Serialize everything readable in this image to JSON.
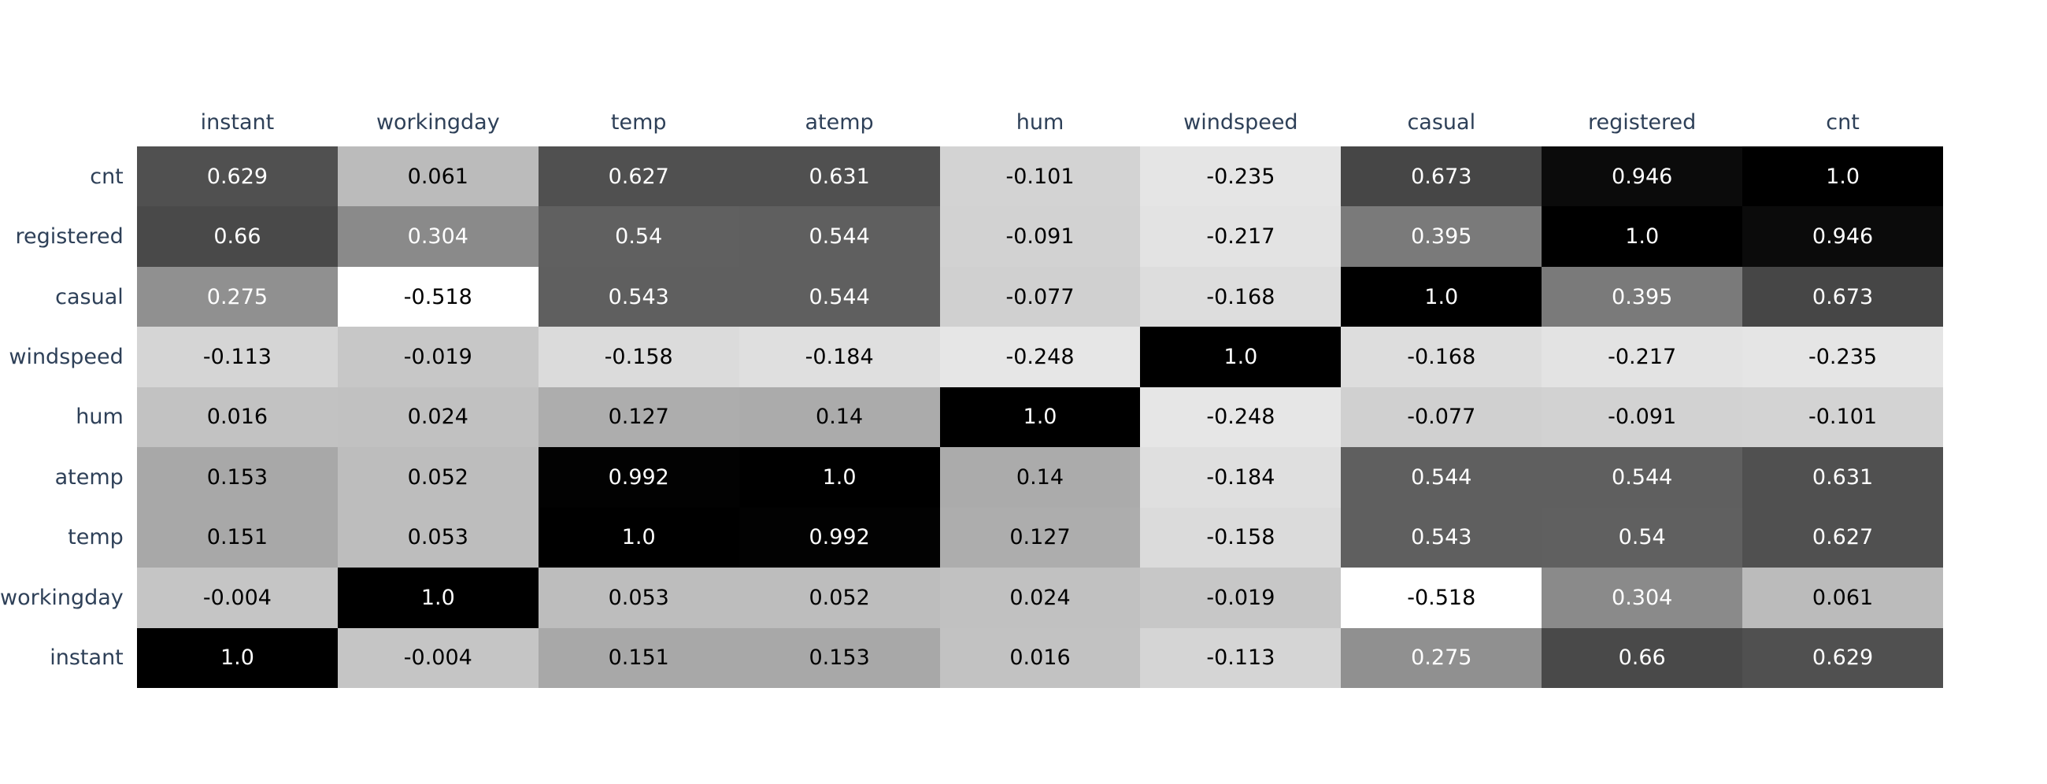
{
  "page": {
    "background": "#ffffff"
  },
  "chart_data": {
    "type": "heatmap",
    "title": "",
    "subtitle": "",
    "legend": "none",
    "grid": false,
    "description": "Correlation matrix heatmap, grayscale",
    "columns": [
      "instant",
      "workingday",
      "temp",
      "atemp",
      "hum",
      "windspeed",
      "casual",
      "registered",
      "cnt"
    ],
    "rows": [
      "cnt",
      "registered",
      "casual",
      "windspeed",
      "hum",
      "atemp",
      "temp",
      "workingday",
      "instant"
    ],
    "values": [
      [
        "0.629",
        "0.061",
        "0.627",
        "0.631",
        "-0.101",
        "-0.235",
        "0.673",
        "0.946",
        "1.0"
      ],
      [
        "0.66",
        "0.304",
        "0.54",
        "0.544",
        "-0.091",
        "-0.217",
        "0.395",
        "1.0",
        "0.946"
      ],
      [
        "0.275",
        "-0.518",
        "0.543",
        "0.544",
        "-0.077",
        "-0.168",
        "1.0",
        "0.395",
        "0.673"
      ],
      [
        "-0.113",
        "-0.019",
        "-0.158",
        "-0.184",
        "-0.248",
        "1.0",
        "-0.168",
        "-0.217",
        "-0.235"
      ],
      [
        "0.016",
        "0.024",
        "0.127",
        "0.14",
        "1.0",
        "-0.248",
        "-0.077",
        "-0.091",
        "-0.101"
      ],
      [
        "0.153",
        "0.052",
        "0.992",
        "1.0",
        "0.14",
        "-0.184",
        "0.544",
        "0.544",
        "0.631"
      ],
      [
        "0.151",
        "0.053",
        "1.0",
        "0.992",
        "0.127",
        "-0.158",
        "0.543",
        "0.54",
        "0.627"
      ],
      [
        "-0.004",
        "1.0",
        "0.053",
        "0.052",
        "0.024",
        "-0.019",
        "-0.518",
        "0.304",
        "0.061"
      ],
      [
        "1.0",
        "-0.004",
        "0.151",
        "0.153",
        "0.016",
        "-0.113",
        "0.275",
        "0.66",
        "0.629"
      ]
    ],
    "colormap": {
      "name": "Greys",
      "gray_stops": [
        255,
        240,
        217,
        189,
        150,
        115,
        82,
        37,
        0
      ],
      "vmin": -0.518,
      "vmax": 1.0
    },
    "colors": {
      "label_color": "#2e4058",
      "cell_text_light": "#ffffff",
      "cell_text_dark": "#000000"
    }
  }
}
